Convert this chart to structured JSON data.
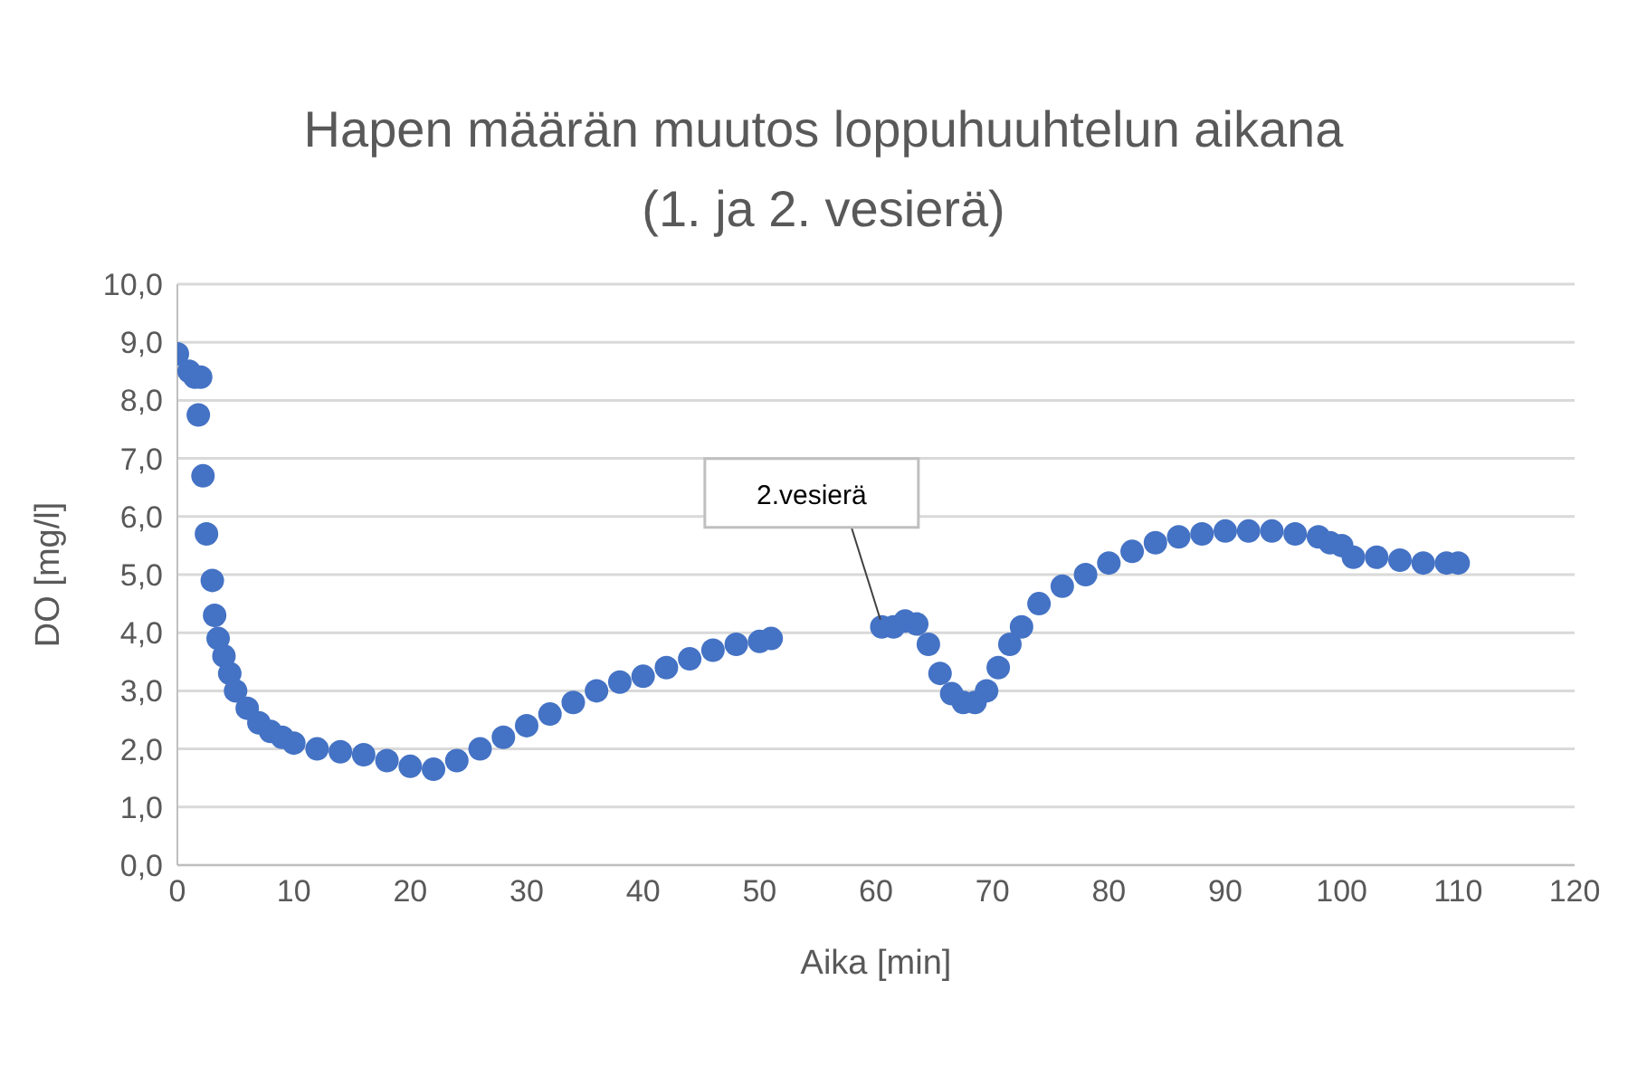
{
  "chart_data": {
    "type": "scatter",
    "title": "Hapen määrän muutos loppuhuuhtelun aikana",
    "subtitle": "(1. ja 2. vesierä)",
    "xlabel": "Aika [min]",
    "ylabel": "DO [mg/l]",
    "annotations": [
      {
        "text": "2.vesierä",
        "x": 61,
        "y": 4.1
      }
    ],
    "x": [
      0,
      1,
      1.5,
      2,
      1.8,
      2.2,
      2.5,
      3,
      3.2,
      3.5,
      4,
      4.5,
      5,
      6,
      7,
      8,
      9,
      10,
      12,
      14,
      16,
      18,
      20,
      22,
      24,
      26,
      28,
      30,
      32,
      34,
      36,
      38,
      40,
      42,
      44,
      46,
      48,
      50,
      51,
      60.5,
      61.5,
      62.5,
      63.5,
      64.5,
      65.5,
      66.5,
      67.5,
      68.5,
      69.5,
      70.5,
      71.5,
      72.5,
      74,
      76,
      78,
      80,
      82,
      84,
      86,
      88,
      90,
      92,
      94,
      96,
      98,
      99,
      100,
      101,
      103,
      105,
      107,
      109,
      110
    ],
    "series": [
      {
        "color": "#4472c4",
        "values": [
          8.8,
          8.5,
          8.4,
          8.4,
          7.75,
          6.7,
          5.7,
          4.9,
          4.3,
          3.9,
          3.6,
          3.3,
          3.0,
          2.7,
          2.45,
          2.3,
          2.2,
          2.1,
          2.0,
          1.95,
          1.9,
          1.8,
          1.7,
          1.65,
          1.8,
          2.0,
          2.2,
          2.4,
          2.6,
          2.8,
          3.0,
          3.15,
          3.25,
          3.4,
          3.55,
          3.7,
          3.8,
          3.85,
          3.9,
          4.1,
          4.1,
          4.2,
          4.15,
          3.8,
          3.3,
          2.95,
          2.8,
          2.8,
          3.0,
          3.4,
          3.8,
          4.1,
          4.5,
          4.8,
          5.0,
          5.2,
          5.4,
          5.55,
          5.65,
          5.7,
          5.75,
          5.75,
          5.75,
          5.7,
          5.65,
          5.55,
          5.5,
          5.3,
          5.3,
          5.25,
          5.2,
          5.2,
          5.2
        ]
      }
    ],
    "xlim": [
      0,
      120
    ],
    "xticks": [
      0,
      10,
      20,
      30,
      40,
      50,
      60,
      70,
      80,
      90,
      100,
      110,
      120
    ],
    "ylim": [
      0,
      10
    ],
    "yticks": [
      {
        "value": 0,
        "label": "0,0"
      },
      {
        "value": 1,
        "label": "1,0"
      },
      {
        "value": 2,
        "label": "2,0"
      },
      {
        "value": 3,
        "label": "3,0"
      },
      {
        "value": 4,
        "label": "4,0"
      },
      {
        "value": 5,
        "label": "5,0"
      },
      {
        "value": 6,
        "label": "6,0"
      },
      {
        "value": 7,
        "label": "7,0"
      },
      {
        "value": 8,
        "label": "8,0"
      },
      {
        "value": 9,
        "label": "9,0"
      },
      {
        "value": 10,
        "label": "10,0"
      }
    ],
    "grid": "y",
    "legend": false,
    "marker": "circle"
  }
}
